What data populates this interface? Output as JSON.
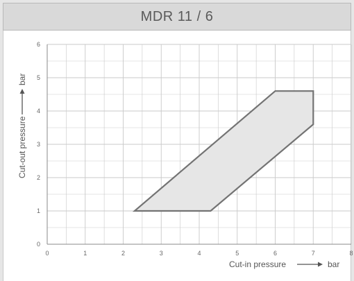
{
  "chart_data": {
    "type": "area",
    "title": "MDR 11 / 6",
    "xlabel": "Cut-in pressure",
    "xunit": "bar",
    "ylabel": "Cut-out pressure",
    "yunit": "bar",
    "xlim": [
      0,
      8
    ],
    "ylim": [
      0,
      6
    ],
    "xticks": [
      "0",
      "1",
      "2",
      "3",
      "4",
      "5",
      "6",
      "7",
      "8"
    ],
    "yticks": [
      "0",
      "1",
      "2",
      "3",
      "4",
      "5",
      "6"
    ],
    "grid": true,
    "region": [
      {
        "x": 2.3,
        "y": 1.0
      },
      {
        "x": 4.3,
        "y": 1.0
      },
      {
        "x": 7.0,
        "y": 3.6
      },
      {
        "x": 7.0,
        "y": 4.6
      },
      {
        "x": 6.0,
        "y": 4.6
      }
    ],
    "colors": {
      "fill": "#e6e6e6",
      "outline": "#737373",
      "grid": "#c9c9c9",
      "header_bg": "#d9d9d9",
      "frame_bg": "#e6e6e6"
    }
  }
}
